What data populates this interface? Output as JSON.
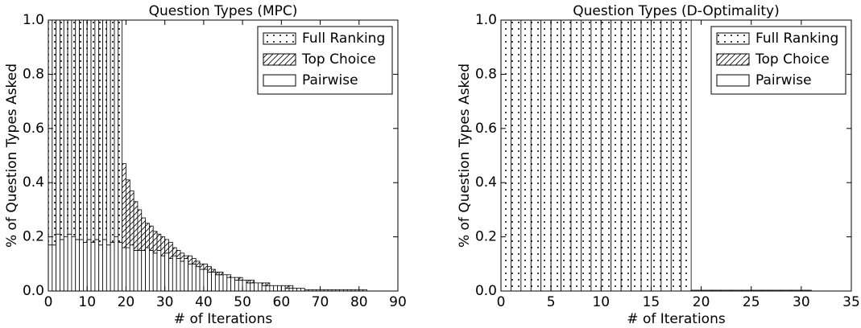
{
  "chart_data": [
    {
      "type": "histogram",
      "title": "Question Types (MPC)",
      "xlabel": "# of Iterations",
      "ylabel": "% of Question Types Asked",
      "bins": [
        0,
        1,
        2,
        3,
        4,
        5,
        6,
        7,
        8,
        9,
        10,
        11,
        12,
        13,
        14,
        15,
        16,
        17,
        18,
        19,
        20,
        21,
        22,
        23,
        24,
        25,
        26,
        27,
        28,
        29,
        30,
        31,
        32,
        33,
        34,
        35,
        36,
        37,
        38,
        39,
        40,
        41,
        42,
        43,
        44,
        45,
        46,
        47,
        48,
        49,
        50,
        51,
        52,
        53,
        54,
        55,
        56,
        57,
        58,
        59,
        60,
        61,
        62,
        63,
        64,
        65,
        66,
        67,
        68,
        69,
        70,
        71,
        72,
        73,
        74,
        75,
        76,
        77,
        78,
        79,
        80,
        81,
        82,
        83
      ],
      "series": [
        {
          "name": "Full Ranking",
          "hatch": "dots",
          "values": [
            0.83,
            0.83,
            0.79,
            0.81,
            0.8,
            0.79,
            0.8,
            0.81,
            0.81,
            0.82,
            0.81,
            0.82,
            0.81,
            0.83,
            0.81,
            0.83,
            0.82,
            0.8,
            0.82,
            0,
            0,
            0,
            0,
            0,
            0,
            0,
            0,
            0,
            0,
            0,
            0,
            0,
            0,
            0,
            0,
            0,
            0,
            0,
            0,
            0,
            0,
            0,
            0,
            0,
            0,
            0,
            0,
            0,
            0,
            0,
            0,
            0,
            0,
            0,
            0,
            0,
            0,
            0,
            0,
            0,
            0,
            0,
            0,
            0,
            0,
            0,
            0,
            0,
            0,
            0,
            0,
            0,
            0,
            0,
            0,
            0,
            0,
            0,
            0,
            0,
            0,
            0,
            0
          ]
        },
        {
          "name": "Top Choice",
          "hatch": "diagonal",
          "values": [
            0,
            0,
            0,
            0,
            0,
            0,
            0,
            0,
            0,
            0,
            0,
            0,
            0,
            0,
            0,
            0,
            0,
            0,
            0,
            0.31,
            0.25,
            0.2,
            0.18,
            0.15,
            0.12,
            0.09,
            0.09,
            0.08,
            0.06,
            0.07,
            0.05,
            0.06,
            0.03,
            0.03,
            0.03,
            0.01,
            0.03,
            0.02,
            0.02,
            0.02,
            0.02,
            0.02,
            0.01,
            0.01,
            0.01,
            0,
            0.01,
            0,
            0.01,
            0.01,
            0,
            0.01,
            0.01,
            0,
            0,
            0.01,
            0.01,
            0,
            0,
            0,
            0,
            0.01,
            0.01,
            0,
            0,
            0,
            0,
            0,
            0,
            0,
            0,
            0,
            0,
            0,
            0,
            0,
            0,
            0,
            0,
            0,
            0,
            0,
            0
          ]
        },
        {
          "name": "Pairwise",
          "hatch": "plain",
          "values": [
            0.17,
            0.17,
            0.21,
            0.19,
            0.2,
            0.21,
            0.2,
            0.19,
            0.19,
            0.18,
            0.19,
            0.18,
            0.19,
            0.17,
            0.19,
            0.17,
            0.18,
            0.2,
            0.18,
            0.16,
            0.16,
            0.17,
            0.15,
            0.15,
            0.15,
            0.16,
            0.15,
            0.14,
            0.15,
            0.13,
            0.14,
            0.12,
            0.13,
            0.12,
            0.11,
            0.12,
            0.1,
            0.1,
            0.09,
            0.08,
            0.08,
            0.07,
            0.07,
            0.06,
            0.06,
            0.06,
            0.05,
            0.05,
            0.04,
            0.04,
            0.04,
            0.03,
            0.03,
            0.03,
            0.03,
            0.02,
            0.02,
            0.02,
            0.02,
            0.02,
            0.02,
            0.01,
            0.01,
            0.01,
            0.01,
            0.01,
            0.005,
            0.005,
            0.005,
            0.005,
            0.005,
            0.005,
            0.005,
            0.005,
            0.005,
            0.005,
            0.005,
            0.005,
            0.005,
            0.005,
            0.005,
            0.005,
            0
          ]
        }
      ],
      "xlim": [
        0,
        90
      ],
      "xticks": [
        0,
        10,
        20,
        30,
        40,
        50,
        60,
        70,
        80,
        90
      ],
      "ylim": [
        0,
        1
      ],
      "yticks": [
        {
          "value": 0,
          "label": "0.0"
        },
        0.2,
        0.4,
        0.6,
        0.8,
        {
          "value": 1,
          "label": "1.0"
        }
      ],
      "legend": "upper right"
    },
    {
      "type": "histogram",
      "title": "Question Types (D-Optimality)",
      "xlabel": "# of Iterations",
      "ylabel": "% of Question Types Asked",
      "bins": [
        0,
        1,
        2,
        3,
        4,
        5,
        6,
        7,
        8,
        9,
        10,
        11,
        12,
        13,
        14,
        15,
        16,
        17,
        18,
        19,
        20,
        21,
        22,
        23,
        24,
        25,
        26,
        27,
        28,
        29,
        30,
        31
      ],
      "series": [
        {
          "name": "Full Ranking",
          "hatch": "dots",
          "values": [
            1,
            1,
            1,
            1,
            1,
            1,
            1,
            1,
            1,
            1,
            1,
            1,
            1,
            1,
            1,
            1,
            1,
            1,
            1,
            0,
            0,
            0,
            0,
            0,
            0,
            0,
            0,
            0,
            0,
            0,
            0
          ]
        },
        {
          "name": "Top Choice",
          "hatch": "diagonal",
          "values": [
            0,
            0,
            0,
            0,
            0,
            0,
            0,
            0,
            0,
            0,
            0,
            0,
            0,
            0,
            0,
            0,
            0,
            0,
            0,
            0,
            0,
            0,
            0,
            0,
            0,
            0,
            0,
            0,
            0,
            0,
            0
          ]
        },
        {
          "name": "Pairwise",
          "hatch": "plain",
          "values": [
            0,
            0,
            0,
            0,
            0,
            0,
            0,
            0,
            0,
            0,
            0,
            0,
            0,
            0,
            0,
            0,
            0,
            0,
            0,
            0.003,
            0.003,
            0.003,
            0.003,
            0.003,
            0.003,
            0.003,
            0.003,
            0.003,
            0.003,
            0.003,
            0.003
          ]
        }
      ],
      "xlim": [
        0,
        35
      ],
      "xticks": [
        0,
        5,
        10,
        15,
        20,
        25,
        30,
        35
      ],
      "ylim": [
        0,
        1
      ],
      "yticks": [
        {
          "value": 0,
          "label": "0.0"
        },
        0.2,
        0.4,
        0.6,
        0.8,
        {
          "value": 1,
          "label": "1.0"
        }
      ],
      "legend": "upper right"
    }
  ]
}
